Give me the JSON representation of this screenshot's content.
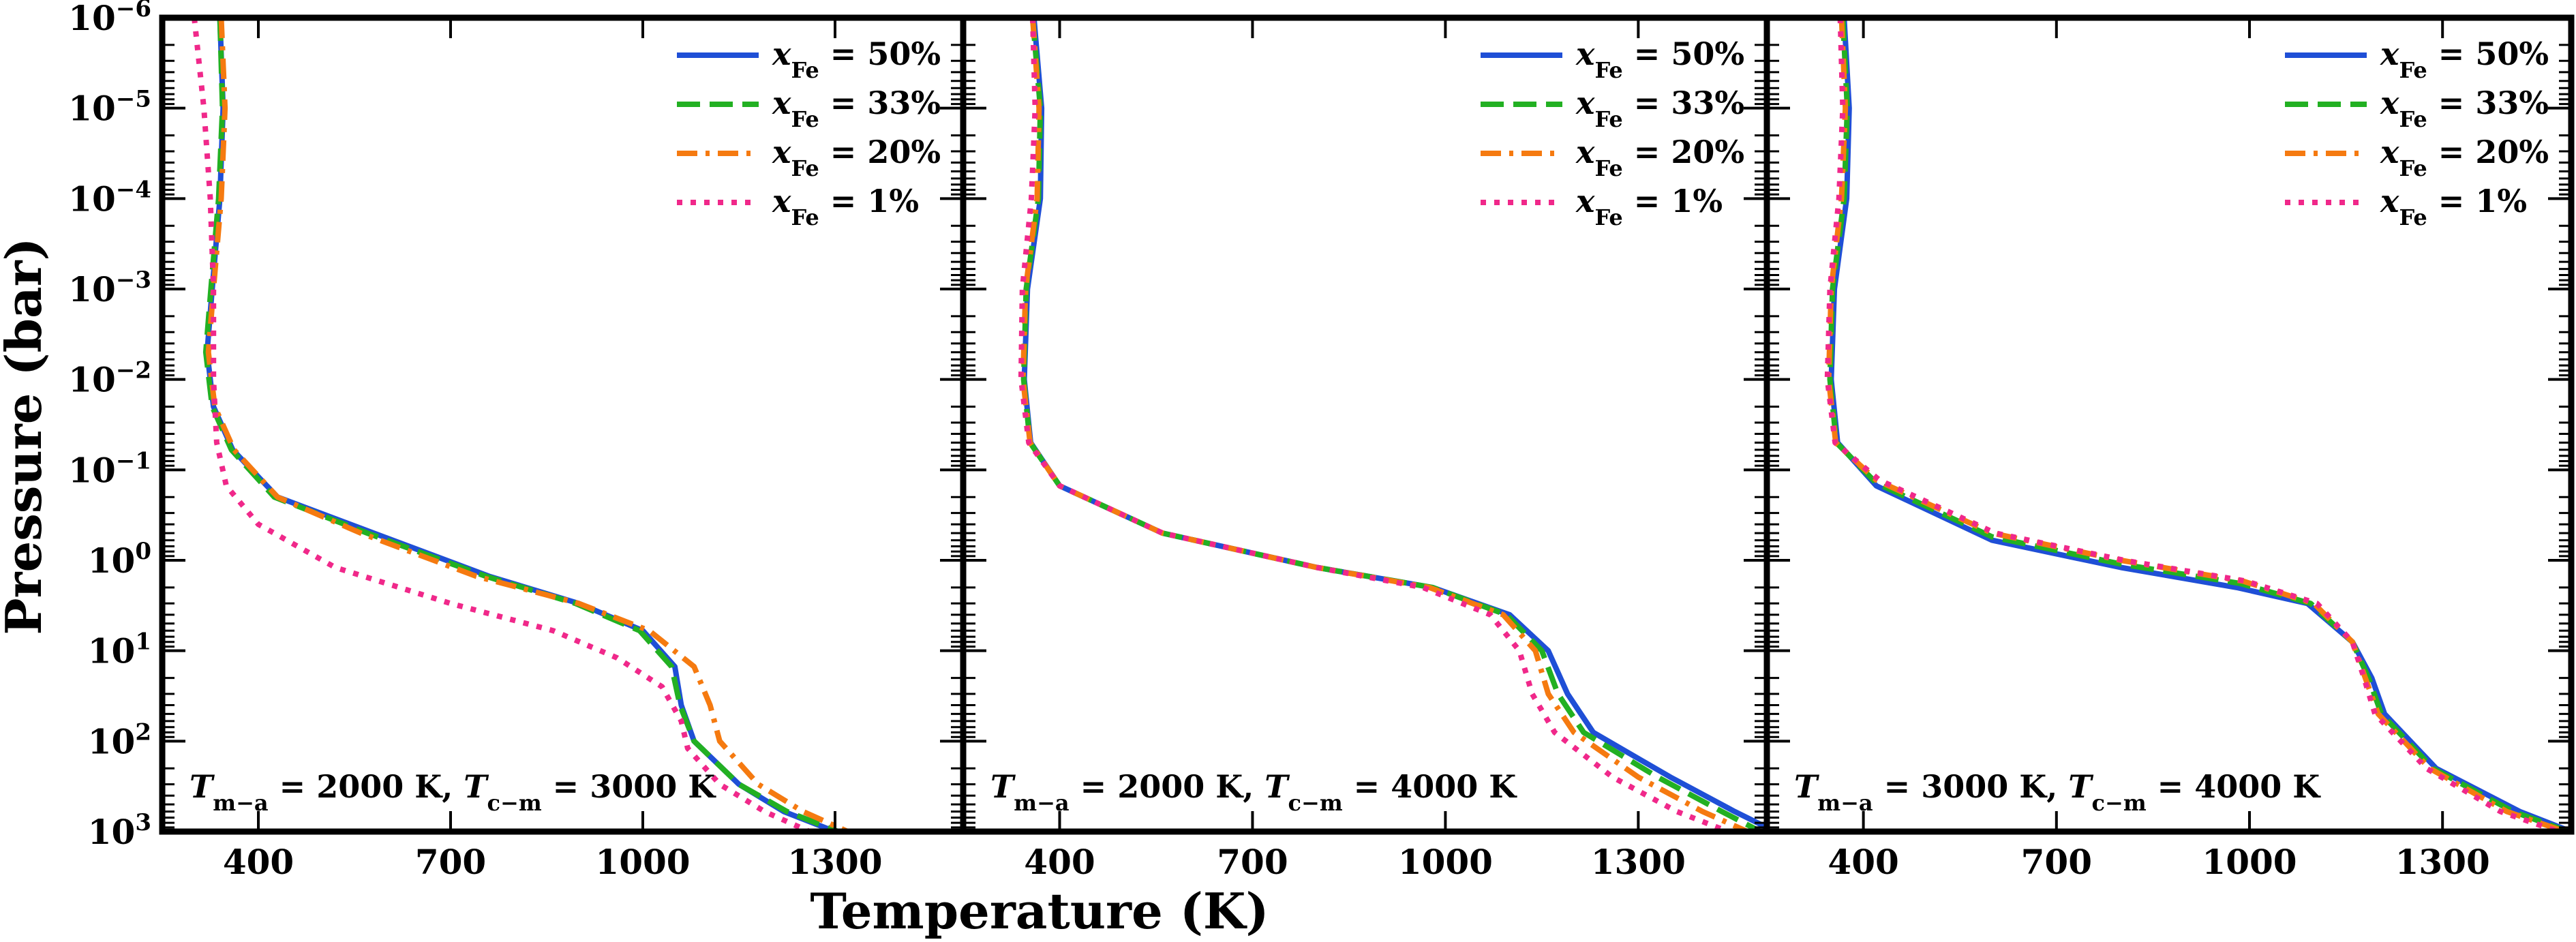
{
  "figure": {
    "ylabel": "Pressure (bar)",
    "xlabel": "Temperature (K)",
    "colors": {
      "xfe50": "#1f4fd6",
      "xfe33": "#22b022",
      "xfe20": "#f57a10",
      "xfe1": "#f0288a"
    }
  },
  "chart_data": [
    {
      "type": "line",
      "annotation": "T_m−a = 2000 K, T_c−m = 3000 K",
      "xlim": [
        250,
        1500
      ],
      "xticks": [
        400,
        700,
        1000,
        1300
      ],
      "yscale": "log",
      "ylim": [
        1e-06,
        1000
      ],
      "yticks": [
        "10^-6",
        "10^-5",
        "10^-4",
        "10^-3",
        "10^-2",
        "10^-1",
        "10^0",
        "10^1",
        "10^2",
        "10^3"
      ],
      "yinverted": true,
      "legend": [
        "x_Fe = 50%",
        "x_Fe = 33%",
        "x_Fe = 20%",
        "x_Fe = 1%"
      ],
      "series": [
        {
          "name": "x_Fe = 50%",
          "style": "solid",
          "color": "#1f4fd6",
          "points": [
            [
              340,
              1e-06
            ],
            [
              345,
              1e-05
            ],
            [
              340,
              0.0001
            ],
            [
              328,
              0.001
            ],
            [
              320,
              0.005
            ],
            [
              330,
              0.02
            ],
            [
              360,
              0.06
            ],
            [
              430,
              0.2
            ],
            [
              580,
              0.5
            ],
            [
              760,
              1.5
            ],
            [
              900,
              3
            ],
            [
              1000,
              6
            ],
            [
              1050,
              15
            ],
            [
              1060,
              40
            ],
            [
              1080,
              100
            ],
            [
              1150,
              300
            ],
            [
              1220,
              600
            ],
            [
              1300,
              1000
            ]
          ]
        },
        {
          "name": "x_Fe = 33%",
          "style": "dashed",
          "color": "#22b022",
          "points": [
            [
              340,
              1e-06
            ],
            [
              344,
              1e-05
            ],
            [
              338,
              0.0001
            ],
            [
              326,
              0.001
            ],
            [
              318,
              0.005
            ],
            [
              328,
              0.02
            ],
            [
              358,
              0.06
            ],
            [
              425,
              0.2
            ],
            [
              570,
              0.5
            ],
            [
              755,
              1.5
            ],
            [
              895,
              3
            ],
            [
              995,
              6
            ],
            [
              1045,
              15
            ],
            [
              1058,
              40
            ],
            [
              1080,
              100
            ],
            [
              1150,
              300
            ],
            [
              1225,
              600
            ],
            [
              1305,
              1000
            ]
          ]
        },
        {
          "name": "x_Fe = 20%",
          "style": "dashdot",
          "color": "#f57a10",
          "points": [
            [
              342,
              1e-06
            ],
            [
              348,
              1e-05
            ],
            [
              342,
              0.0001
            ],
            [
              330,
              0.001
            ],
            [
              322,
              0.005
            ],
            [
              332,
              0.02
            ],
            [
              362,
              0.06
            ],
            [
              430,
              0.2
            ],
            [
              560,
              0.5
            ],
            [
              740,
              1.5
            ],
            [
              900,
              3
            ],
            [
              1010,
              6
            ],
            [
              1080,
              15
            ],
            [
              1105,
              40
            ],
            [
              1120,
              100
            ],
            [
              1180,
              300
            ],
            [
              1250,
              600
            ],
            [
              1320,
              1000
            ]
          ]
        },
        {
          "name": "x_Fe = 1%",
          "style": "dotted",
          "color": "#f0288a",
          "points": [
            [
              300,
              1e-06
            ],
            [
              315,
              1e-05
            ],
            [
              325,
              0.0001
            ],
            [
              330,
              0.001
            ],
            [
              330,
              0.01
            ],
            [
              335,
              0.05
            ],
            [
              350,
              0.15
            ],
            [
              400,
              0.4
            ],
            [
              520,
              1.2
            ],
            [
              700,
              3
            ],
            [
              860,
              6
            ],
            [
              960,
              12
            ],
            [
              1030,
              25
            ],
            [
              1060,
              60
            ],
            [
              1070,
              120
            ],
            [
              1120,
              300
            ],
            [
              1190,
              600
            ],
            [
              1260,
              1000
            ]
          ]
        }
      ]
    },
    {
      "type": "line",
      "annotation": "T_m−a = 2000 K, T_c−m = 4000 K",
      "xlim": [
        250,
        1500
      ],
      "xticks": [
        400,
        700,
        1000,
        1300
      ],
      "yscale": "log",
      "ylim": [
        1e-06,
        1000
      ],
      "yinverted": true,
      "legend": [
        "x_Fe = 50%",
        "x_Fe = 33%",
        "x_Fe = 20%",
        "x_Fe = 1%"
      ],
      "series": [
        {
          "name": "x_Fe = 50%",
          "style": "solid",
          "color": "#1f4fd6",
          "points": [
            [
              360,
              1e-06
            ],
            [
              372,
              1e-05
            ],
            [
              370,
              0.0001
            ],
            [
              350,
              0.001
            ],
            [
              345,
              0.01
            ],
            [
              355,
              0.05
            ],
            [
              400,
              0.15
            ],
            [
              560,
              0.5
            ],
            [
              800,
              1.2
            ],
            [
              980,
              2
            ],
            [
              1100,
              4
            ],
            [
              1160,
              10
            ],
            [
              1190,
              30
            ],
            [
              1230,
              80
            ],
            [
              1350,
              250
            ],
            [
              1450,
              600
            ],
            [
              1500,
              900
            ]
          ]
        },
        {
          "name": "x_Fe = 33%",
          "style": "dashed",
          "color": "#22b022",
          "points": [
            [
              358,
              1e-06
            ],
            [
              370,
              1e-05
            ],
            [
              367,
              0.0001
            ],
            [
              348,
              0.001
            ],
            [
              344,
              0.01
            ],
            [
              354,
              0.05
            ],
            [
              400,
              0.15
            ],
            [
              560,
              0.5
            ],
            [
              800,
              1.2
            ],
            [
              980,
              2
            ],
            [
              1095,
              4
            ],
            [
              1150,
              10
            ],
            [
              1175,
              30
            ],
            [
              1215,
              80
            ],
            [
              1330,
              250
            ],
            [
              1430,
              600
            ],
            [
              1490,
              1000
            ]
          ]
        },
        {
          "name": "x_Fe = 20%",
          "style": "dashdot",
          "color": "#f57a10",
          "points": [
            [
              358,
              1e-06
            ],
            [
              368,
              1e-05
            ],
            [
              365,
              0.0001
            ],
            [
              347,
              0.001
            ],
            [
              343,
              0.01
            ],
            [
              354,
              0.05
            ],
            [
              400,
              0.15
            ],
            [
              560,
              0.5
            ],
            [
              800,
              1.2
            ],
            [
              975,
              2
            ],
            [
              1090,
              4
            ],
            [
              1140,
              10
            ],
            [
              1160,
              30
            ],
            [
              1200,
              80
            ],
            [
              1300,
              250
            ],
            [
              1400,
              600
            ],
            [
              1470,
              1000
            ]
          ]
        },
        {
          "name": "x_Fe = 1%",
          "style": "dotted",
          "color": "#f0288a",
          "points": [
            [
              358,
              1e-06
            ],
            [
              362,
              1e-05
            ],
            [
              356,
              0.0001
            ],
            [
              342,
              0.001
            ],
            [
              340,
              0.01
            ],
            [
              352,
              0.05
            ],
            [
              400,
              0.15
            ],
            [
              560,
              0.5
            ],
            [
              800,
              1.2
            ],
            [
              965,
              2
            ],
            [
              1070,
              4
            ],
            [
              1115,
              10
            ],
            [
              1135,
              30
            ],
            [
              1170,
              80
            ],
            [
              1260,
              250
            ],
            [
              1360,
              600
            ],
            [
              1440,
              1000
            ]
          ]
        }
      ]
    },
    {
      "type": "line",
      "annotation": "T_m−a = 3000 K, T_c−m = 4000 K",
      "xlim": [
        250,
        1500
      ],
      "xticks": [
        400,
        700,
        1000,
        1300
      ],
      "yscale": "log",
      "ylim": [
        1e-06,
        1000
      ],
      "yinverted": true,
      "legend": [
        "x_Fe = 50%",
        "x_Fe = 33%",
        "x_Fe = 20%",
        "x_Fe = 1%"
      ],
      "series": [
        {
          "name": "x_Fe = 50%",
          "style": "solid",
          "color": "#1f4fd6",
          "points": [
            [
              370,
              1e-06
            ],
            [
              378,
              1e-05
            ],
            [
              374,
              0.0001
            ],
            [
              355,
              0.001
            ],
            [
              350,
              0.01
            ],
            [
              360,
              0.05
            ],
            [
              420,
              0.15
            ],
            [
              600,
              0.6
            ],
            [
              800,
              1.2
            ],
            [
              980,
              2
            ],
            [
              1090,
              3
            ],
            [
              1160,
              8
            ],
            [
              1190,
              20
            ],
            [
              1210,
              50
            ],
            [
              1290,
              200
            ],
            [
              1420,
              600
            ],
            [
              1500,
              1000
            ]
          ]
        },
        {
          "name": "x_Fe = 33%",
          "style": "dashed",
          "color": "#22b022",
          "points": [
            [
              368,
              1e-06
            ],
            [
              375,
              1e-05
            ],
            [
              370,
              0.0001
            ],
            [
              352,
              0.001
            ],
            [
              348,
              0.01
            ],
            [
              358,
              0.05
            ],
            [
              420,
              0.14
            ],
            [
              600,
              0.55
            ],
            [
              800,
              1.1
            ],
            [
              985,
              1.8
            ],
            [
              1095,
              3
            ],
            [
              1160,
              8
            ],
            [
              1185,
              20
            ],
            [
              1205,
              50
            ],
            [
              1285,
              200
            ],
            [
              1410,
              600
            ],
            [
              1495,
              1000
            ]
          ]
        },
        {
          "name": "x_Fe = 20%",
          "style": "dashdot",
          "color": "#f57a10",
          "points": [
            [
              366,
              1e-06
            ],
            [
              372,
              1e-05
            ],
            [
              366,
              0.0001
            ],
            [
              350,
              0.001
            ],
            [
              346,
              0.01
            ],
            [
              357,
              0.05
            ],
            [
              420,
              0.13
            ],
            [
              600,
              0.5
            ],
            [
              800,
              1.0
            ],
            [
              990,
              1.7
            ],
            [
              1100,
              3
            ],
            [
              1160,
              8
            ],
            [
              1180,
              20
            ],
            [
              1200,
              50
            ],
            [
              1280,
              200
            ],
            [
              1400,
              600
            ],
            [
              1490,
              1000
            ]
          ]
        },
        {
          "name": "x_Fe = 1%",
          "style": "dotted",
          "color": "#f0288a",
          "points": [
            [
              364,
              1e-06
            ],
            [
              368,
              1e-05
            ],
            [
              362,
              0.0001
            ],
            [
              348,
              0.001
            ],
            [
              344,
              0.01
            ],
            [
              356,
              0.05
            ],
            [
              425,
              0.13
            ],
            [
              605,
              0.5
            ],
            [
              805,
              1.0
            ],
            [
              995,
              1.7
            ],
            [
              1105,
              3
            ],
            [
              1160,
              8
            ],
            [
              1178,
              20
            ],
            [
              1195,
              50
            ],
            [
              1275,
              200
            ],
            [
              1390,
              600
            ],
            [
              1480,
              1000
            ]
          ]
        }
      ]
    }
  ]
}
